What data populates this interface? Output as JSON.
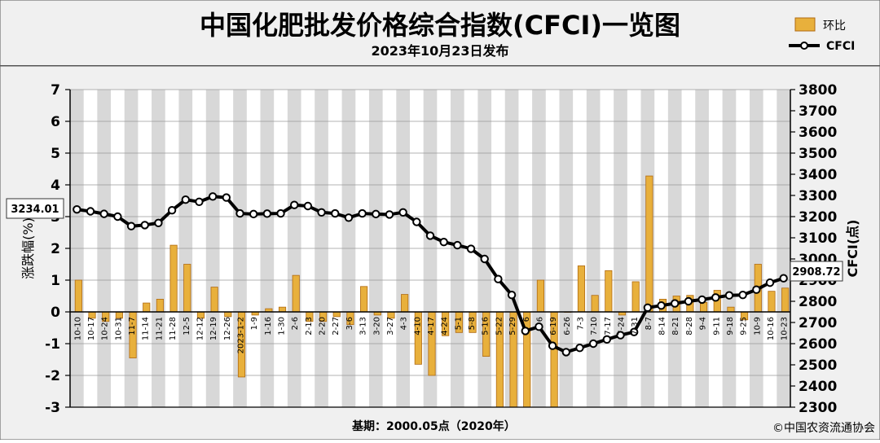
{
  "header": {
    "title": "中国化肥批发价格综合指数(CFCI)一览图",
    "date": "2023年10月23日发布"
  },
  "footer": {
    "base_note": "基期：2000.05点（2020年）",
    "copyright": "©中国农资流通协会"
  },
  "colors": {
    "bar_fill": "#e8b03c",
    "bar_stroke": "#b06a12",
    "line": "#000000",
    "marker_fill": "#ffffff",
    "panel_bg": "#f0f0f0",
    "plot_bg": "#ffffff",
    "plot_band": "#d8d8d8"
  },
  "chart_data": {
    "type": "bar+line",
    "title": "中国化肥批发价格综合指数(CFCI)一览图",
    "subtitle": "2023年10月23日发布",
    "categories": [
      "10-10",
      "10-17",
      "10-24",
      "10-31",
      "11-7",
      "11-14",
      "11-21",
      "11-28",
      "12-5",
      "12-12",
      "12-19",
      "12-26",
      "2023-1-2",
      "1-9",
      "1-16",
      "1-30",
      "2-6",
      "2-13",
      "2-20",
      "2-27",
      "3-6",
      "3-13",
      "3-20",
      "3-27",
      "4-3",
      "4-10",
      "4-17",
      "4-24",
      "5-1",
      "5-8",
      "5-16",
      "5-22",
      "5-29",
      "6-5",
      "6-12",
      "6-19",
      "6-26",
      "7-3",
      "7-10",
      "7-17",
      "7-24",
      "7-31",
      "8-7",
      "8-14",
      "8-21",
      "8-28",
      "9-4",
      "9-11",
      "9-18",
      "9-25",
      "10-9",
      "10-16",
      "10-23"
    ],
    "category_labels": [
      "10-10",
      "10-17",
      "10-24",
      "10-31",
      "11-7",
      "11-14",
      "11-21",
      "11-28",
      "12-5",
      "12-12",
      "12-19",
      "12-26",
      "2023-1-2",
      "1-9",
      "1-16",
      "1-30",
      "2-6",
      "2-13",
      "2-20",
      "2-27",
      "3-6",
      "3-13",
      "3-20",
      "3-27",
      "4-3",
      "4-10",
      "4-17",
      "4-24",
      "5-1",
      "5-8",
      "5-16",
      "5-22",
      "5-29",
      "6",
      "6",
      "6-19",
      "6-26",
      "7-3",
      "7-10",
      "7-17",
      "7-24",
      "7-31",
      "8-7",
      "8-14",
      "8-21",
      "8-28",
      "9-4",
      "9-11",
      "9-18",
      "9-25",
      "10-9",
      "10-16",
      "10-23"
    ],
    "series": [
      {
        "name": "环比",
        "type": "bar",
        "axis": "left",
        "values": [
          1.0,
          -0.2,
          -0.3,
          -0.2,
          -1.45,
          0.28,
          0.4,
          2.1,
          1.5,
          -0.2,
          0.78,
          -0.15,
          -2.05,
          -0.1,
          0.1,
          0.15,
          1.15,
          -0.3,
          -0.3,
          -0.15,
          -0.4,
          0.8,
          -0.1,
          -0.2,
          0.55,
          -1.65,
          -2.0,
          -0.75,
          -0.65,
          -0.65,
          -1.4,
          -3.0,
          -3.0,
          -3.0,
          1.0,
          -3.0,
          0.0,
          1.45,
          0.52,
          1.3,
          -0.1,
          0.95,
          4.28,
          0.4,
          0.5,
          0.52,
          0.3,
          0.68,
          0.15,
          -0.25,
          1.5,
          0.65,
          0.75
        ]
      },
      {
        "name": "CFCI",
        "type": "line",
        "axis": "right",
        "values": [
          3234.01,
          3225,
          3213,
          3200,
          3155,
          3160,
          3170,
          3230,
          3280,
          3270,
          3295,
          3290,
          3215,
          3212,
          3214,
          3215,
          3255,
          3250,
          3220,
          3215,
          3195,
          3215,
          3212,
          3210,
          3220,
          3175,
          3110,
          3080,
          3065,
          3048,
          3000,
          2905,
          2830,
          2660,
          2680,
          2590,
          2560,
          2580,
          2600,
          2620,
          2640,
          2655,
          2770,
          2780,
          2790,
          2800,
          2808,
          2818,
          2828,
          2830,
          2855,
          2888,
          2908.72
        ]
      }
    ],
    "y_left": {
      "label": "涨跌幅(%)",
      "min": -3,
      "max": 7,
      "ticks": [
        -3,
        -2,
        -1,
        0,
        1,
        2,
        3,
        4,
        5,
        6,
        7
      ]
    },
    "y_right": {
      "label": "CFCI(点)",
      "min": 2300,
      "max": 3800,
      "ticks": [
        2300,
        2400,
        2500,
        2600,
        2700,
        2800,
        2900,
        3000,
        3100,
        3200,
        3300,
        3400,
        3500,
        3600,
        3700,
        3800
      ]
    },
    "annotations": {
      "first_value": "3234.01",
      "last_value": "2908.72"
    },
    "legend": {
      "position": "top-right",
      "items": [
        "环比",
        "CFCI"
      ]
    },
    "grid": true
  }
}
